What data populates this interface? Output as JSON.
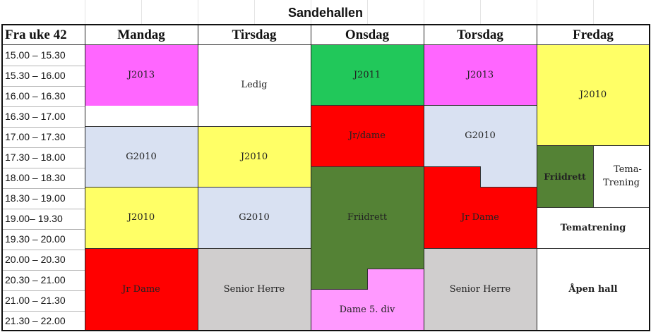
{
  "title": "Sandehallen",
  "header": {
    "week_label": "Fra uke 42",
    "days": [
      "Mandag",
      "Tirsdag",
      "Onsdag",
      "Torsdag",
      "Fredag"
    ]
  },
  "times": [
    "15.00 – 15.30",
    "15.30 – 16.00",
    "16.00 – 16.30",
    "16.30 – 17.00",
    "17.00 – 17.30",
    "17.30 – 18.00",
    "18.00 – 18.30",
    "18.30 – 19.00",
    "19.00– 19.30",
    "19.30 – 20.00",
    "20.00 – 20.30",
    "20.30 – 21.00",
    "21.00 – 21.30",
    "21.30 – 22.00"
  ],
  "blocks": {
    "mandag_1": "J2013",
    "mandag_2": "G2010",
    "mandag_3": "J2010",
    "mandag_4": "Jr Dame",
    "tirsdag_1": "Ledig",
    "tirsdag_2": "J2010",
    "tirsdag_3": "G2010",
    "tirsdag_4": "Senior Herre",
    "onsdag_1": "J2011",
    "onsdag_2": "Jr/dame",
    "onsdag_3": "Friidrett",
    "onsdag_4": "Dame 5. div",
    "torsdag_1": "J2013",
    "torsdag_2": "G2010",
    "torsdag_3": "Jr Dame",
    "torsdag_4": "Senior Herre",
    "fredag_1": "J2010",
    "fredag_2a": "Friidrett",
    "fredag_2b_line1": "Tema-",
    "fredag_2b_line2": "Trening",
    "fredag_3": "Tematrening",
    "fredag_4": "Åpen hall"
  },
  "colors": {
    "magenta": "#ff66ff",
    "green": "#21c85a",
    "red": "#ff0000",
    "lightblue": "#d9e1f2",
    "yellow": "#ffff66",
    "darkgreen": "#548235",
    "gray": "#d0cece",
    "pink": "#ff99ff"
  }
}
